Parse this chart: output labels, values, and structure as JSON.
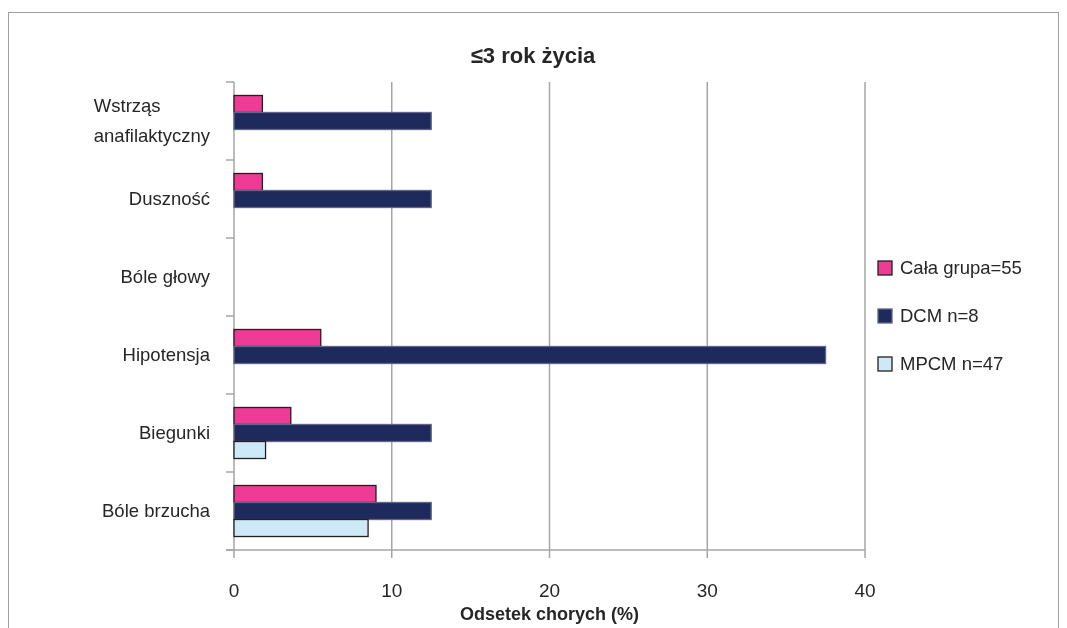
{
  "chart_data": {
    "type": "bar",
    "orientation": "horizontal",
    "title": "≤3 rok życia",
    "xlabel": "Odsetek chorych (%)",
    "categories": [
      "Wstrząs anafilaktyczny",
      "Duszność",
      "Bóle głowy",
      "Hipotensja",
      "Biegunki",
      "Bóle brzucha"
    ],
    "series": [
      {
        "name": "Cała grupa=55",
        "color": "#ee3b96",
        "values": [
          1.8,
          1.8,
          0,
          5.5,
          3.6,
          9.0
        ]
      },
      {
        "name": "DCM n=8",
        "color": "#1f2a5c",
        "values": [
          12.5,
          12.5,
          0,
          37.5,
          12.5,
          12.5
        ]
      },
      {
        "name": "MPCM n=47",
        "color": "#cde9f8",
        "values": [
          0,
          0,
          0,
          0,
          2.0,
          8.5
        ]
      }
    ],
    "xlim": [
      0,
      40
    ],
    "xticks": [
      0,
      10,
      20,
      30,
      40
    ],
    "grid": "x",
    "legend": "right"
  }
}
